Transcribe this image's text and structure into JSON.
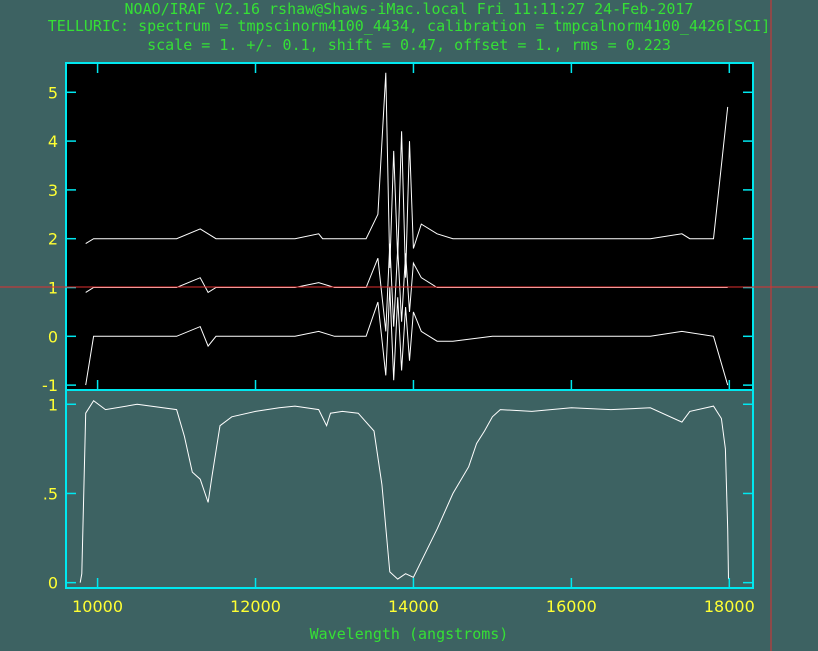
{
  "header": {
    "line1": "NOAO/IRAF V2.16 rshaw@Shaws-iMac.local Fri 11:11:27 24-Feb-2017",
    "line2": "TELLURIC: spectrum = tmpscinorm4100_4434, calibration = tmpcalnorm4100_4426[SCI]",
    "line3": "scale =    1. +/-    0.1, shift = 0.47, offset =  1., rms = 0.223"
  },
  "colors": {
    "background": "#3d6262",
    "frame": "#00e8f0",
    "tick_labels": "#ffff33",
    "text": "#35e035",
    "plot_background": "#000000",
    "spectrum_lines": "#ffffff",
    "cursor": "#e03030"
  },
  "chart_data": [
    {
      "type": "line",
      "panel": "top",
      "xlim": [
        9600,
        18300
      ],
      "ylim": [
        -1.1,
        5.6
      ],
      "yticks": [
        -1,
        0,
        1,
        2,
        3,
        4,
        5
      ],
      "ytick_labels": [
        "-1",
        "0",
        "1",
        "2",
        "3",
        "4",
        "5"
      ],
      "background": "black",
      "series": [
        {
          "x": [
            9850,
            9950,
            10500,
            11000,
            11300,
            11400,
            11500,
            12000,
            12500,
            12800,
            12850,
            13000,
            13400,
            13550,
            13650,
            13700,
            13750,
            13800,
            13850,
            13900,
            13950,
            14000,
            14100,
            14300,
            14500,
            15000,
            15500,
            16000,
            16500,
            17000,
            17400,
            17500,
            17800,
            17980
          ],
          "y": [
            1.9,
            2.0,
            2.0,
            2.0,
            2.2,
            2.1,
            2.0,
            2.0,
            2.0,
            2.1,
            2.0,
            2.0,
            2.0,
            2.5,
            5.4,
            1.4,
            3.8,
            1.6,
            4.2,
            1.2,
            4.0,
            1.8,
            2.3,
            2.1,
            2.0,
            2.0,
            2.0,
            2.0,
            2.0,
            2.0,
            2.1,
            2.0,
            2.0,
            4.7
          ]
        },
        {
          "x": [
            9850,
            9950,
            10500,
            11000,
            11300,
            11400,
            11500,
            12000,
            12500,
            12800,
            13000,
            13400,
            13550,
            13650,
            13700,
            13750,
            13800,
            13850,
            13900,
            13950,
            14000,
            14100,
            14300,
            14500,
            15000,
            15500,
            16000,
            16500,
            17000,
            17400,
            17800,
            17980
          ],
          "y": [
            0.9,
            1.0,
            1.0,
            1.0,
            1.2,
            0.9,
            1.0,
            1.0,
            1.0,
            1.1,
            1.0,
            1.0,
            1.6,
            0.1,
            1.9,
            0.2,
            1.8,
            0.3,
            1.7,
            0.5,
            1.5,
            1.2,
            1.0,
            1.0,
            1.0,
            1.0,
            1.0,
            1.0,
            1.0,
            1.0,
            1.0,
            1.0
          ]
        },
        {
          "x": [
            9850,
            9950,
            10500,
            11000,
            11300,
            11400,
            11500,
            12000,
            12500,
            12800,
            13000,
            13400,
            13550,
            13650,
            13700,
            13750,
            13800,
            13850,
            13900,
            13950,
            14000,
            14100,
            14300,
            14500,
            15000,
            15500,
            16000,
            16500,
            17000,
            17400,
            17800,
            17980
          ],
          "y": [
            -1.0,
            0.0,
            0.0,
            0.0,
            0.2,
            -0.2,
            0.0,
            0.0,
            0.0,
            0.1,
            0.0,
            0.0,
            0.7,
            -0.8,
            1.0,
            -0.9,
            0.8,
            -0.7,
            0.6,
            -0.5,
            0.5,
            0.1,
            -0.1,
            -0.1,
            0.0,
            0.0,
            0.0,
            0.0,
            0.0,
            0.1,
            0.0,
            -1.0
          ]
        }
      ],
      "cursor_y": 1.0
    },
    {
      "type": "line",
      "panel": "bottom",
      "xlabel": "Wavelength (angstroms)",
      "xlim": [
        9600,
        18300
      ],
      "ylim": [
        -0.03,
        1.08
      ],
      "xticks": [
        10000,
        12000,
        14000,
        16000,
        18000
      ],
      "xtick_labels": [
        "10000",
        "12000",
        "14000",
        "16000",
        "18000"
      ],
      "yticks": [
        0,
        0.5,
        1
      ],
      "ytick_labels": [
        "0",
        ".5",
        "1"
      ],
      "series": [
        {
          "x": [
            9780,
            9800,
            9850,
            9950,
            10100,
            10500,
            11000,
            11100,
            11200,
            11300,
            11400,
            11450,
            11550,
            11700,
            12000,
            12300,
            12500,
            12800,
            12900,
            12950,
            13100,
            13300,
            13500,
            13600,
            13700,
            13800,
            13900,
            14000,
            14100,
            14300,
            14500,
            14700,
            14800,
            14900,
            15000,
            15100,
            15500,
            16000,
            16500,
            17000,
            17400,
            17500,
            17800,
            17900,
            17950,
            17980,
            17990
          ],
          "y": [
            0.0,
            0.05,
            0.95,
            1.02,
            0.97,
            1.0,
            0.97,
            0.82,
            0.62,
            0.58,
            0.45,
            0.6,
            0.88,
            0.93,
            0.96,
            0.98,
            0.99,
            0.97,
            0.88,
            0.95,
            0.96,
            0.95,
            0.85,
            0.55,
            0.06,
            0.02,
            0.05,
            0.03,
            0.12,
            0.3,
            0.5,
            0.65,
            0.78,
            0.85,
            0.93,
            0.97,
            0.96,
            0.98,
            0.97,
            0.98,
            0.9,
            0.96,
            0.99,
            0.92,
            0.75,
            0.3,
            0.02
          ]
        }
      ]
    }
  ]
}
